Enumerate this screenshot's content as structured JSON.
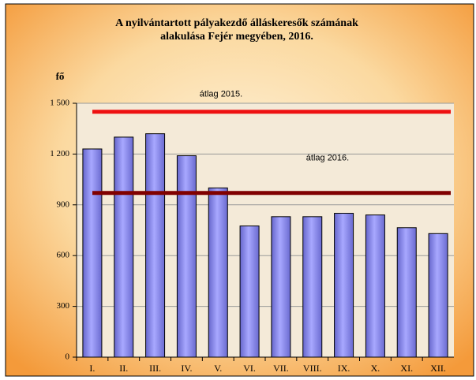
{
  "chart_data": {
    "type": "bar",
    "title": [
      "A nyilvántartott pályakezdő álláskeresők számának",
      "alakulása Fejér megyében, 2016."
    ],
    "y_label": "fő",
    "categories": [
      "I.",
      "II.",
      "III.",
      "IV.",
      "V.",
      "VI.",
      "VII.",
      "VIII.",
      "IX.",
      "X.",
      "XI.",
      "XII."
    ],
    "values": [
      1230,
      1300,
      1320,
      1190,
      1000,
      775,
      830,
      830,
      850,
      840,
      765,
      730
    ],
    "color": "#9999ff",
    "ylim": [
      0,
      1500
    ],
    "yticks": [
      0,
      300,
      600,
      900,
      {
        "value": 1200,
        "label": "1 200"
      },
      {
        "value": 1500,
        "label": "1 500"
      }
    ],
    "grid": true,
    "reference_lines": [
      {
        "name": "átlag 2015.",
        "value": 1450,
        "color": "#ee1111"
      },
      {
        "name": "átlag 2016.",
        "value": 970,
        "color": "#800000"
      }
    ]
  }
}
